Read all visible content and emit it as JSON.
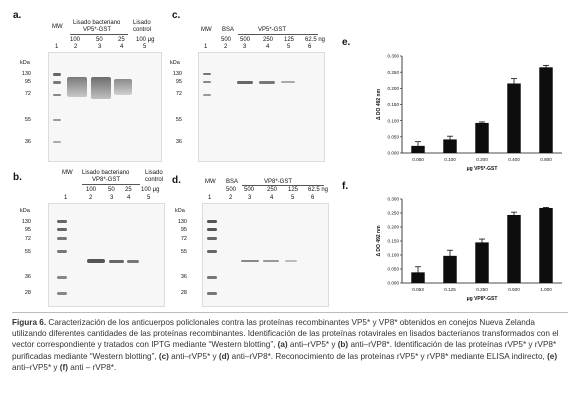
{
  "panels": {
    "a": {
      "letter": "a.",
      "header_mw": "MW",
      "header_lisado": "Lisado bacteriano",
      "header_lisado2": "VP5*-GST",
      "header_control": "Lisado",
      "header_control2": "control",
      "amounts": [
        "100",
        "50",
        "25",
        "100 μg"
      ],
      "lanes": [
        "1",
        "2",
        "3",
        "4",
        "5"
      ],
      "kda_label": "kDa",
      "markers": [
        "130",
        "95",
        "72",
        "55",
        "36"
      ]
    },
    "b": {
      "letter": "b.",
      "header_mw": "MW",
      "header_lisado": "Lisado bacteriano",
      "header_lisado2": "VP8*-GST",
      "header_control": "Lisado",
      "header_control2": "control",
      "amounts": [
        "100",
        "50",
        "25",
        "100 μg"
      ],
      "lanes": [
        "1",
        "2",
        "3",
        "4",
        "5"
      ],
      "kda_label": "kDa",
      "markers": [
        "130",
        "95",
        "72",
        "55",
        "36",
        "28"
      ]
    },
    "c": {
      "letter": "c.",
      "header_mw": "MW",
      "header_bsa": "BSA",
      "header_gst": "VP5*-GST",
      "amounts": [
        "500",
        "500",
        "250",
        "125",
        "62.5 ng"
      ],
      "lanes": [
        "1",
        "2",
        "3",
        "4",
        "5",
        "6"
      ],
      "kda_label": "kDa",
      "markers": [
        "130",
        "95",
        "72",
        "55",
        "36"
      ]
    },
    "d": {
      "letter": "d.",
      "header_mw": "MW",
      "header_bsa": "BSA",
      "header_gst": "VP8*-GST",
      "amounts": [
        "500",
        "500",
        "250",
        "125",
        "62.5 ng"
      ],
      "lanes": [
        "1",
        "2",
        "3",
        "4",
        "5",
        "6"
      ],
      "kda_label": "kDa",
      "markers": [
        "130",
        "95",
        "72",
        "55",
        "36",
        "28"
      ]
    }
  },
  "chart_data": [
    {
      "panel": "e.",
      "type": "bar",
      "categories": [
        "0.050",
        "0.100",
        "0.200",
        "0.400",
        "0.800"
      ],
      "values": [
        0.022,
        0.042,
        0.093,
        0.215,
        0.265
      ],
      "errors": [
        0.013,
        0.01,
        0.003,
        0.015,
        0.006
      ],
      "ylabel": "Δ DO 492 nm",
      "xlabel": "μg VP5*-GST",
      "yticks": [
        "0.000",
        "0.050",
        "0.100",
        "0.150",
        "0.200",
        "0.250",
        "0.300"
      ],
      "ylim": [
        0,
        0.3
      ]
    },
    {
      "panel": "f.",
      "type": "bar",
      "categories": [
        "0.063",
        "0.125",
        "0.250",
        "0.500",
        "1.000"
      ],
      "values": [
        0.038,
        0.097,
        0.145,
        0.243,
        0.268
      ],
      "errors": [
        0.02,
        0.02,
        0.012,
        0.01,
        0.002
      ],
      "ylabel": "Δ DO 492 nm",
      "xlabel": "μg VP8*-GST",
      "yticks": [
        "0.000",
        "0.050",
        "0.100",
        "0.150",
        "0.200",
        "0.250",
        "0.300"
      ],
      "ylim": [
        0,
        0.3
      ]
    }
  ],
  "caption": {
    "figure_label": "Figura 6.",
    "text_1": " Caracterización de los anticuerpos policlonales contra las proteínas recombinantes VP5* y VP8* obtenidos en conejos Nueva Zelanda utilizando diferentes cantidades de las proteínas recombinantes. Identificación de las proteínas rotavirales en lisados bacterianos transformados con el vector correspondiente y tratados con IPTG mediante “Western blotting”, ",
    "a": "(a)",
    "text_a": " anti–rVP5* y ",
    "b": "(b)",
    "text_b": " anti–rVP8*. Identificación de las proteínas rVP5* y rVP8* purificadas mediante “Western blotting”, ",
    "c": "(c)",
    "text_c": " anti–rVP5* y ",
    "d": "(d)",
    "text_d": " anti–rVP8*. Reconocimiento de las proteínas rVP5* y rVP8* mediante ELISA indirecto, ",
    "e": "(e)",
    "text_e": " anti–rVP5* y ",
    "f": "(f)",
    "text_f": " anti – rVP8*."
  }
}
